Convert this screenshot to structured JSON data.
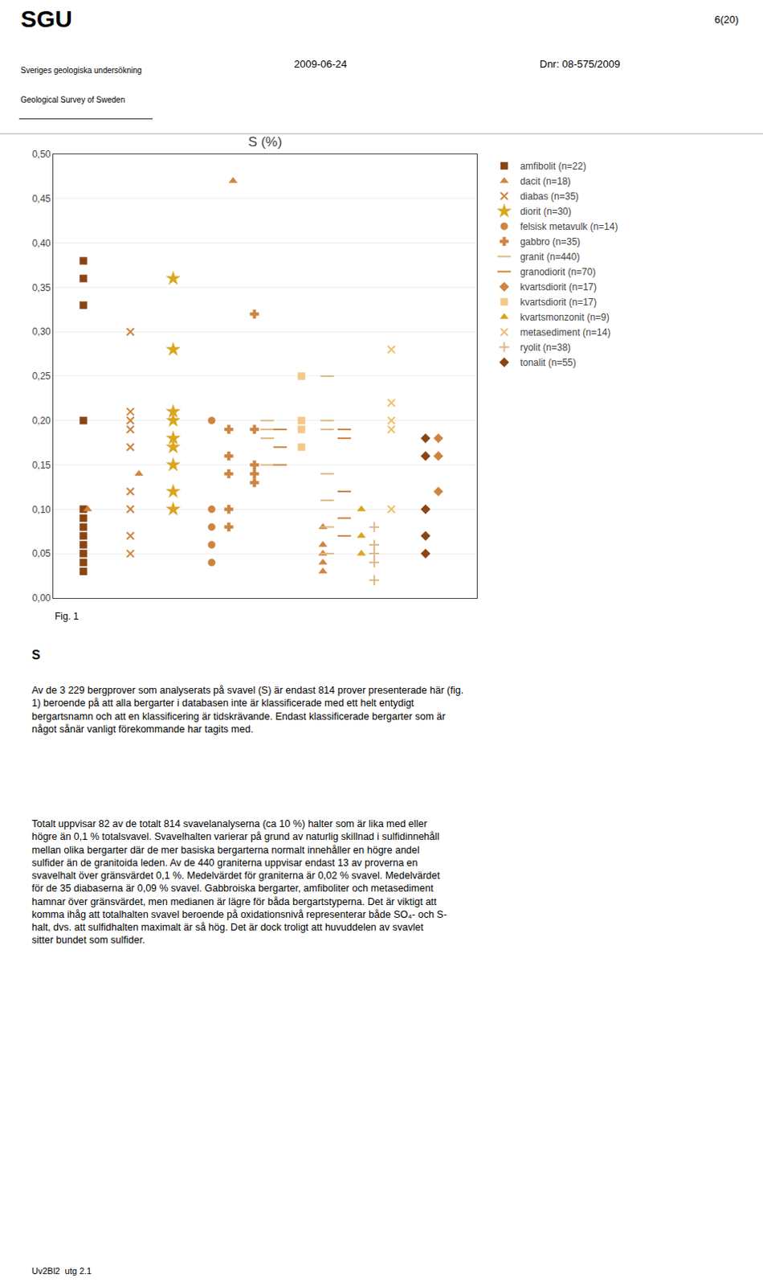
{
  "chart_data": {
    "type": "scatter",
    "title": "S (%)",
    "annotations": [
      "6(20)",
      "SGU",
      "Sveriges geologiska undersökning",
      "Geological Survey of Sweden",
      "2009-06-24",
      "Dnr: 08-575/2009",
      "Fig. 1",
      "S",
      "Av de 3 229 bergprover som analyserats på svavel (S) är endast 814 prover presenterade här (fig.\n1) beroende på att alla bergarter i databasen inte är klassificerade med ett helt entydigt\nbergartsnamn och att en klassificering är tidskrävande. Endast klassificerade bergarter som är\nnågot sånär vanligt förekommande har tagits med.",
      "Totalt uppvisar 82 av de totalt 814 svavelanalyserna (ca 10 %) halter som är lika med eller\nhögre än 0,1 % totalsvavel. Svavelhalten varierar på grund av naturlig skillnad i sulfidinnehåll\nmellan olika bergarter där de mer basiska bergarterna normalt innehåller en högre andel\nsulfider än de granitoida leden. Av de 440 graniterna uppvisar endast 13 av proverna en\nsvavelhalt över gränsvärdet 0,1 %. Medelvärdet för graniterna är 0,02 % svavel. Medelvärdet\nför de 35 diabaserna är 0,09 % svavel. Gabbroiska bergarter, amfiboliter och metasediment\nhamnar över gränsvärdet, men medianen är lägre för båda bergartstyperna. Det är viktigt att\nkomma ihåg att totalhalten svavel beroende på oxidationsnivå representerar både SO₄- och S-\nhalt, dvs. att sulfidhalten maximalt är så hög. Det är dock troligt att huvuddelen av svavlet\nsitter bundet som sulfider.",
      "Uv2Bl2  utg 2.1"
    ],
    "xlim": [
      0.3,
      10.2
    ],
    "ylim": [
      0.0,
      0.5
    ],
    "yticks": [
      {
        "value": 0.0,
        "label": "0,00"
      },
      {
        "value": 0.05,
        "label": "0,05"
      },
      {
        "value": 0.1,
        "label": "0,10"
      },
      {
        "value": 0.15,
        "label": "0,15"
      },
      {
        "value": 0.2,
        "label": "0,20"
      },
      {
        "value": 0.25,
        "label": "0,25"
      },
      {
        "value": 0.3,
        "label": "0,30"
      },
      {
        "value": 0.35,
        "label": "0,35"
      },
      {
        "value": 0.4,
        "label": "0,40"
      },
      {
        "value": 0.45,
        "label": "0,45"
      },
      {
        "value": 0.5,
        "label": "0,50"
      }
    ],
    "tick_labels": "y",
    "grid": true,
    "legend": "right",
    "series": [
      {
        "name": "amfibolit (n=22)",
        "color": "#8B4513",
        "marker": "square",
        "x": [
          1.0,
          1.0,
          1.0,
          1.0,
          1.0,
          1.0,
          1.0,
          1.0,
          1.0,
          1.0,
          1.0,
          1.0
        ],
        "values": [
          0.38,
          0.36,
          0.33,
          0.2,
          0.1,
          0.09,
          0.08,
          0.07,
          0.06,
          0.05,
          0.04,
          0.03
        ]
      },
      {
        "name": "dacit (n=18)",
        "color": "#CD853F",
        "marker": "triangle-up",
        "x": [
          1.1,
          2.3,
          4.5,
          6.6,
          6.6,
          6.6,
          6.6,
          6.6
        ],
        "values": [
          0.1,
          0.14,
          0.47,
          0.08,
          0.06,
          0.05,
          0.04,
          0.03
        ]
      },
      {
        "name": "diabas (n=35)",
        "color": "#CD853F",
        "marker": "x-thin-open",
        "x": [
          2.1,
          2.1,
          2.1,
          2.1,
          2.1,
          2.1,
          2.1,
          2.1,
          2.1
        ],
        "values": [
          0.3,
          0.21,
          0.2,
          0.19,
          0.17,
          0.12,
          0.1,
          0.07,
          0.05
        ]
      },
      {
        "name": "diorit (n=30)",
        "color": "#DAA520",
        "marker": "star",
        "x": [
          3.1,
          3.1,
          3.1,
          3.1,
          3.1,
          3.1,
          3.1,
          3.1,
          3.1
        ],
        "values": [
          0.36,
          0.28,
          0.21,
          0.2,
          0.18,
          0.17,
          0.15,
          0.12,
          0.1
        ]
      },
      {
        "name": "felsisk metavulk (n=14)",
        "color": "#CD853F",
        "marker": "circle",
        "x": [
          4.0,
          4.0,
          4.0,
          4.0,
          4.0
        ],
        "values": [
          0.2,
          0.1,
          0.08,
          0.06,
          0.04
        ]
      },
      {
        "name": "gabbro (n=35)",
        "color": "#CD853F",
        "marker": "cross",
        "x": [
          4.4,
          4.4,
          4.4,
          4.4,
          4.4,
          5.0,
          5.0,
          5.0,
          5.0,
          5.0
        ],
        "values": [
          0.19,
          0.16,
          0.14,
          0.1,
          0.08,
          0.32,
          0.19,
          0.15,
          0.14,
          0.13
        ]
      },
      {
        "name": "granit (n=440)",
        "color": "#DEB887",
        "marker": "line-ew-open",
        "x": [
          5.3,
          5.3,
          5.3,
          5.3,
          6.7,
          6.7,
          6.7,
          6.7,
          6.7,
          6.7,
          6.7
        ],
        "values": [
          0.2,
          0.19,
          0.18,
          0.15,
          0.25,
          0.2,
          0.19,
          0.14,
          0.11,
          0.08,
          0.05
        ]
      },
      {
        "name": "granodiorit (n=70)",
        "color": "#CD853F",
        "marker": "line-ew-open",
        "x": [
          5.6,
          5.6,
          5.6,
          7.1,
          7.1,
          7.1,
          7.1,
          7.1
        ],
        "values": [
          0.19,
          0.17,
          0.15,
          0.19,
          0.18,
          0.12,
          0.09,
          0.07
        ]
      },
      {
        "name": "kvartsdiorit (n=17)",
        "color": "#CD853F",
        "marker": "diamond",
        "x": [
          9.3,
          9.3,
          9.3
        ],
        "values": [
          0.18,
          0.16,
          0.12
        ]
      },
      {
        "name": "kvartsdiorit (n=17)",
        "color": "#F4C88A",
        "marker": "square",
        "x": [
          6.1,
          6.1,
          6.1,
          6.1
        ],
        "values": [
          0.25,
          0.2,
          0.19,
          0.17
        ]
      },
      {
        "name": "kvartsmonzonit (n=9)",
        "color": "#DAA520",
        "marker": "triangle-up",
        "x": [
          7.5,
          7.5,
          7.5
        ],
        "values": [
          0.1,
          0.07,
          0.05
        ]
      },
      {
        "name": "metasediment (n=14)",
        "color": "#F0C070",
        "marker": "x-thin-open",
        "x": [
          8.2,
          8.2,
          8.2,
          8.2,
          8.2
        ],
        "values": [
          0.28,
          0.22,
          0.2,
          0.19,
          0.1
        ]
      },
      {
        "name": "ryolit (n=38)",
        "color": "#DEB887",
        "marker": "cross-thin-open",
        "x": [
          7.8,
          7.8,
          7.8,
          7.8,
          7.8
        ],
        "values": [
          0.08,
          0.06,
          0.05,
          0.04,
          0.02
        ]
      },
      {
        "name": "tonalit (n=55)",
        "color": "#8B4513",
        "marker": "diamond",
        "x": [
          9.0,
          9.0,
          9.0,
          9.0,
          9.0
        ],
        "values": [
          0.18,
          0.16,
          0.1,
          0.07,
          0.05
        ]
      }
    ]
  }
}
